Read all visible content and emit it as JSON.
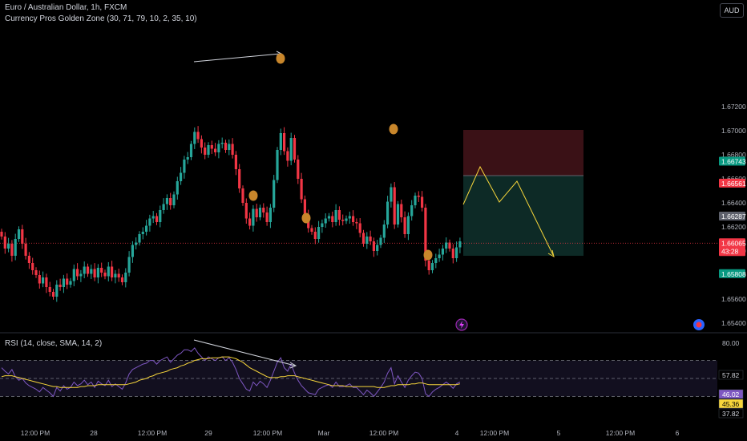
{
  "header": {
    "symbol_line": "Euro / Australian Dollar, 1h, FXCM",
    "indicator_line": "Currency Pros Golden Zone (30, 71, 79, 10, 2, 35, 10)",
    "currency_button": "AUD"
  },
  "rsi_header": "RSI (14, close, SMA, 14, 2)",
  "colors": {
    "up": "#26a69a",
    "down": "#f23645",
    "rsi_line": "#7e57c2",
    "rsi_ma": "#f7d63b",
    "zone_marker": "#c8862b",
    "projection": "#f7d63b",
    "stop_zone": "#3a1116",
    "target_zone": "#0d2a26"
  },
  "chart_data": [
    {
      "type": "candlestick",
      "title": "Euro / Australian Dollar, 1h, FXCM",
      "ylim": [
        1.654,
        1.673
      ],
      "x_ticks": [
        "12:00 PM",
        "28",
        "12:00 PM",
        "29",
        "12:00 PM",
        "Mar",
        "12:00 PM",
        "4",
        "12:00 PM",
        "5",
        "12:00 PM",
        "6"
      ],
      "y_ticks": [
        "1.67200",
        "1.67000",
        "1.66800",
        "1.66600",
        "1.66400",
        "1.66200",
        "1.66000",
        "1.65800",
        "1.65600",
        "1.65400"
      ],
      "price_labels": [
        {
          "text": "1.66743",
          "value": 1.66743,
          "color": "#089981"
        },
        {
          "text": "1.66561",
          "value": 1.66561,
          "color": "#f23645"
        },
        {
          "text": "1.66287",
          "value": 1.66287,
          "color": "#5d606b"
        },
        {
          "text": "1.66065",
          "value": 1.66065,
          "color": "#f23645",
          "countdown": "43:28"
        },
        {
          "text": "1.65808",
          "value": 1.65808,
          "color": "#089981"
        }
      ],
      "close": [
        1.6612,
        1.6602,
        1.6606,
        1.6596,
        1.661,
        1.6618,
        1.6606,
        1.6596,
        1.659,
        1.6584,
        1.658,
        1.6573,
        1.6578,
        1.657,
        1.6566,
        1.6562,
        1.6572,
        1.657,
        1.6577,
        1.6572,
        1.6575,
        1.6585,
        1.6579,
        1.6581,
        1.6587,
        1.6581,
        1.6585,
        1.6578,
        1.6586,
        1.6582,
        1.6579,
        1.6587,
        1.6578,
        1.6581,
        1.6578,
        1.6574,
        1.6582,
        1.6595,
        1.6605,
        1.6607,
        1.6614,
        1.6616,
        1.6621,
        1.6627,
        1.6629,
        1.6624,
        1.6634,
        1.6639,
        1.6644,
        1.6638,
        1.6647,
        1.6658,
        1.6665,
        1.6676,
        1.6678,
        1.6689,
        1.6699,
        1.6693,
        1.6686,
        1.668,
        1.6688,
        1.6685,
        1.6682,
        1.6689,
        1.669,
        1.6684,
        1.6689,
        1.668,
        1.6668,
        1.6652,
        1.664,
        1.6627,
        1.6621,
        1.6635,
        1.6628,
        1.6636,
        1.6632,
        1.6624,
        1.6636,
        1.6659,
        1.6684,
        1.6698,
        1.6683,
        1.6675,
        1.6694,
        1.6676,
        1.666,
        1.6643,
        1.663,
        1.6619,
        1.6616,
        1.661,
        1.662,
        1.6623,
        1.6627,
        1.6629,
        1.6624,
        1.6634,
        1.6626,
        1.6625,
        1.6627,
        1.6629,
        1.6624,
        1.6623,
        1.6615,
        1.6606,
        1.6612,
        1.6608,
        1.66,
        1.6605,
        1.6611,
        1.6622,
        1.6641,
        1.6653,
        1.6622,
        1.6639,
        1.6628,
        1.6614,
        1.6629,
        1.6638,
        1.6646,
        1.6645,
        1.6636,
        1.6592,
        1.6584,
        1.659,
        1.6594,
        1.6597,
        1.6602,
        1.6607,
        1.6602,
        1.6594,
        1.6603,
        1.6608
      ]
    },
    {
      "type": "line",
      "title": "RSI (14, close, SMA, 14, 2)",
      "y_ticks": [
        "80.00"
      ],
      "value_labels": [
        "57.82",
        "46.02",
        "45.36",
        "37.82"
      ],
      "bands": {
        "upper": 70,
        "middle": 50,
        "lower": 30
      },
      "ylim": [
        0,
        100
      ],
      "series": [
        {
          "values": [
            62,
            58,
            55,
            60,
            52,
            48,
            50,
            45,
            42,
            40,
            38,
            35,
            40,
            37,
            34,
            30,
            40,
            36,
            42,
            38,
            40,
            46,
            42,
            44,
            48,
            43,
            46,
            40,
            47,
            44,
            42,
            48,
            41,
            44,
            41,
            38,
            45,
            55,
            60,
            62,
            64,
            66,
            67,
            70,
            70,
            66,
            70,
            72,
            74,
            68,
            72,
            76,
            78,
            82,
            82,
            80,
            84,
            78,
            74,
            70,
            74,
            72,
            70,
            73,
            74,
            70,
            73,
            68,
            60,
            50,
            44,
            38,
            36,
            46,
            42,
            47,
            44,
            40,
            48,
            58,
            68,
            73,
            62,
            58,
            66,
            56,
            48,
            42,
            38,
            34,
            33,
            32,
            38,
            40,
            42,
            43,
            40,
            46,
            41,
            41,
            42,
            44,
            40,
            40,
            36,
            32,
            37,
            34,
            30,
            35,
            40,
            46,
            56,
            62,
            44,
            53,
            46,
            40,
            48,
            53,
            57,
            56,
            50,
            33,
            30,
            35,
            38,
            40,
            43,
            46,
            43,
            39,
            44,
            46
          ]
        },
        {
          "values": [
            52,
            53,
            53,
            53,
            52,
            51,
            50,
            49,
            48,
            47,
            46,
            45,
            44,
            43,
            42,
            41,
            41,
            40,
            40,
            40,
            40,
            40,
            40,
            41,
            41,
            42,
            42,
            42,
            43,
            43,
            43,
            43,
            43,
            43,
            43,
            43,
            43,
            44,
            45,
            46,
            48,
            49,
            50,
            52,
            53,
            55,
            56,
            57,
            58,
            60,
            61,
            62,
            64,
            65,
            67,
            68,
            70,
            71,
            72,
            72,
            72,
            73,
            73,
            73,
            74,
            74,
            74,
            73,
            72,
            70,
            68,
            65,
            62,
            60,
            58,
            56,
            54,
            52,
            51,
            51,
            51,
            52,
            52,
            53,
            53,
            53,
            52,
            51,
            50,
            49,
            48,
            47,
            46,
            45,
            44,
            43,
            42,
            42,
            42,
            42,
            41,
            41,
            41,
            41,
            41,
            41,
            41,
            41,
            41,
            40,
            40,
            40,
            41,
            42,
            42,
            43,
            43,
            43,
            43,
            44,
            44,
            45,
            45,
            44,
            43,
            43,
            43,
            43,
            43,
            43,
            43,
            43,
            43,
            44
          ]
        }
      ]
    }
  ]
}
